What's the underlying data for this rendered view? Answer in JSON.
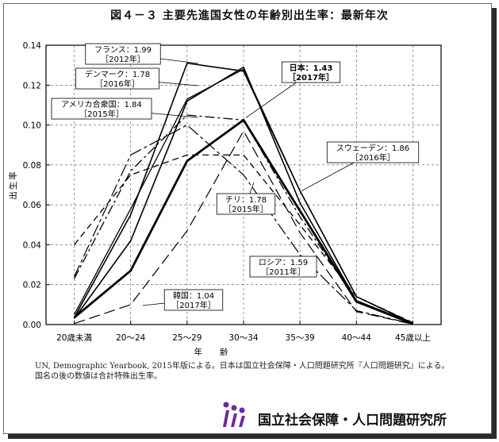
{
  "title": "図４－３ 主要先進国女性の年齢別出生率：最新年次",
  "chart_data": {
    "type": "line",
    "ylabel": "出生率",
    "xlabel": "年齢",
    "ylim": [
      0,
      0.14
    ],
    "yticks": [
      "0.00",
      "0.02",
      "0.04",
      "0.06",
      "0.08",
      "0.10",
      "0.12",
      "0.14"
    ],
    "categories": [
      "20歳未満",
      "20～24",
      "25～29",
      "30～34",
      "35～39",
      "40～44",
      "45歳以上"
    ],
    "grid": "dashed",
    "series": [
      {
        "name": "日本",
        "tfr": "1.43",
        "year": "2017年",
        "values": [
          0.0035,
          0.027,
          0.082,
          0.1025,
          0.057,
          0.0115,
          0.0004
        ],
        "color": "#000000",
        "style": "thick"
      },
      {
        "name": "フランス",
        "tfr": "1.99",
        "year": "2012年",
        "values": [
          0.0035,
          0.055,
          0.131,
          0.127,
          0.067,
          0.014,
          0.0006
        ],
        "color": "#000000",
        "style": "solid"
      },
      {
        "name": "デンマーク",
        "tfr": "1.78",
        "year": "2016年",
        "values": [
          0.003,
          0.042,
          0.112,
          0.129,
          0.061,
          0.012,
          0.0005
        ],
        "color": "#000000",
        "style": "solid"
      },
      {
        "name": "アメリカ合衆国",
        "tfr": "1.84",
        "year": "2015年",
        "values": [
          0.023,
          0.077,
          0.105,
          0.1025,
          0.054,
          0.012,
          0.0008
        ],
        "color": "#000000",
        "style": "dashdot"
      },
      {
        "name": "スウェーデン",
        "tfr": "1.86",
        "year": "2016年",
        "values": [
          0.005,
          0.058,
          0.113,
          0.128,
          0.067,
          0.014,
          0.0007
        ],
        "color": "#000000",
        "style": "solid-thin"
      },
      {
        "name": "チリ",
        "tfr": "1.78",
        "year": "2015年",
        "values": [
          0.04,
          0.075,
          0.085,
          0.085,
          0.05,
          0.014,
          0.001
        ],
        "color": "#000000",
        "style": "dashed"
      },
      {
        "name": "ロシア",
        "tfr": "1.59",
        "year": "2011年",
        "values": [
          0.024,
          0.085,
          0.1,
          0.075,
          0.035,
          0.007,
          0.0003
        ],
        "color": "#000000",
        "style": "dashdot2"
      },
      {
        "name": "韓国",
        "tfr": "1.04",
        "year": "2017年",
        "values": [
          0.0005,
          0.01,
          0.047,
          0.097,
          0.046,
          0.0065,
          0.0002
        ],
        "color": "#000000",
        "style": "longdash"
      }
    ],
    "annotations": [
      {
        "label": "フランス：1.99",
        "year": "［2012年］",
        "series": "フランス"
      },
      {
        "label": "デンマーク：1.78",
        "year": "［2016年］",
        "series": "デンマーク"
      },
      {
        "label": "アメリカ合衆国：1.84",
        "year": "［2015年］",
        "series": "アメリカ合衆国"
      },
      {
        "label": "日本：1.43",
        "year": "［2017年］",
        "series": "日本",
        "bold": true
      },
      {
        "label": "スウェーデン：1.86",
        "year": "［2016年］",
        "series": "スウェーデン"
      },
      {
        "label": "チリ：1.78",
        "year": "［2015年］",
        "series": "チリ"
      },
      {
        "label": "ロシア：1.59",
        "year": "［2011年］",
        "series": "ロシア"
      },
      {
        "label": "韓国：1.04",
        "year": "［2017年］",
        "series": "韓国"
      }
    ]
  },
  "note_line1": "UN, Demographic Yearbook, 2015年版による。日本は国立社会保障・人口問題研究所『人口問題研究』による。",
  "note_line2": "国名の後の数値は合計特殊出生率。",
  "org_name": "国立社会保障・人口問題研究所"
}
